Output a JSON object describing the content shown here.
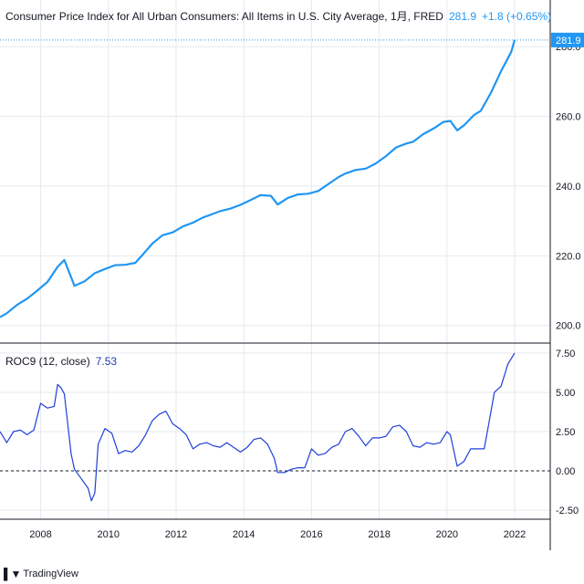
{
  "header": {
    "title": "Consumer Price Index for All Urban Consumers: All Items in U.S. City Average, 1月, FRED",
    "last_value": "281.9",
    "change": "+1.8 (+0.65%)"
  },
  "indicator": {
    "label": "ROC9 (12, close)",
    "value": "7.53"
  },
  "logo": {
    "text": "TradingView"
  },
  "colors": {
    "cpi_line": "#2196f3",
    "roc_line": "#1e3fd9",
    "grid": "#e6e9ee",
    "zero_line": "#131722"
  },
  "chart_data": [
    {
      "type": "line",
      "title": "Consumer Price Index for All Urban Consumers: All Items in U.S. City Average, 1月, FRED",
      "ylim": [
        196,
        285
      ],
      "yticks": [
        200,
        220,
        240,
        260,
        280
      ],
      "ytick_labels": [
        "200.0",
        "220.0",
        "240.0",
        "260.0",
        "280.0"
      ],
      "last_price_label": "281.9",
      "x": [
        2006.8,
        2007.0,
        2007.3,
        2007.6,
        2007.9,
        2008.2,
        2008.5,
        2008.7,
        2009.0,
        2009.3,
        2009.6,
        2009.9,
        2010.2,
        2010.5,
        2010.8,
        2011.0,
        2011.3,
        2011.6,
        2011.9,
        2012.2,
        2012.5,
        2012.8,
        2013.0,
        2013.3,
        2013.6,
        2013.9,
        2014.2,
        2014.5,
        2014.8,
        2015.0,
        2015.3,
        2015.6,
        2015.9,
        2016.2,
        2016.5,
        2016.8,
        2017.0,
        2017.3,
        2017.6,
        2017.9,
        2018.2,
        2018.5,
        2018.8,
        2019.0,
        2019.3,
        2019.6,
        2019.9,
        2020.1,
        2020.3,
        2020.5,
        2020.8,
        2021.0,
        2021.3,
        2021.6,
        2021.9,
        2022.0
      ],
      "values": [
        202.4,
        203.5,
        205.9,
        207.7,
        210.0,
        212.5,
        216.8,
        218.8,
        211.4,
        212.7,
        215.0,
        216.2,
        217.3,
        217.4,
        218.0,
        220.2,
        223.5,
        225.9,
        226.7,
        228.4,
        229.5,
        231.0,
        231.7,
        232.8,
        233.5,
        234.6,
        236.0,
        237.4,
        237.2,
        234.7,
        236.6,
        237.6,
        237.8,
        238.6,
        240.6,
        242.6,
        243.6,
        244.6,
        245.0,
        246.5,
        248.6,
        251.1,
        252.2,
        252.7,
        254.9,
        256.5,
        258.4,
        258.7,
        256.0,
        257.4,
        260.4,
        261.6,
        266.8,
        273.0,
        278.5,
        281.9
      ]
    },
    {
      "type": "line",
      "title": "ROC9 (12, close)",
      "ylim": [
        -2.9,
        7.9
      ],
      "yticks": [
        -2.5,
        0,
        2.5,
        5,
        7.5
      ],
      "ytick_labels": [
        "-2.50",
        "0.00",
        "2.50",
        "5.00",
        "7.50"
      ],
      "zero_line": true,
      "x": [
        2006.8,
        2007.0,
        2007.2,
        2007.4,
        2007.6,
        2007.8,
        2008.0,
        2008.2,
        2008.4,
        2008.5,
        2008.6,
        2008.7,
        2008.9,
        2009.0,
        2009.2,
        2009.4,
        2009.5,
        2009.6,
        2009.7,
        2009.9,
        2010.1,
        2010.3,
        2010.5,
        2010.7,
        2010.9,
        2011.1,
        2011.3,
        2011.5,
        2011.7,
        2011.9,
        2012.1,
        2012.3,
        2012.5,
        2012.7,
        2012.9,
        2013.1,
        2013.3,
        2013.5,
        2013.7,
        2013.9,
        2014.1,
        2014.3,
        2014.5,
        2014.7,
        2014.9,
        2015.0,
        2015.2,
        2015.4,
        2015.6,
        2015.8,
        2016.0,
        2016.2,
        2016.4,
        2016.6,
        2016.8,
        2017.0,
        2017.2,
        2017.4,
        2017.6,
        2017.8,
        2018.0,
        2018.2,
        2018.4,
        2018.6,
        2018.8,
        2019.0,
        2019.2,
        2019.4,
        2019.6,
        2019.8,
        2020.0,
        2020.1,
        2020.3,
        2020.5,
        2020.7,
        2020.9,
        2021.1,
        2021.2,
        2021.4,
        2021.6,
        2021.8,
        2022.0
      ],
      "values": [
        2.5,
        1.8,
        2.5,
        2.6,
        2.3,
        2.6,
        4.3,
        4.0,
        4.1,
        5.5,
        5.3,
        4.9,
        1.1,
        0.1,
        -0.5,
        -1.1,
        -1.9,
        -1.4,
        1.7,
        2.7,
        2.4,
        1.1,
        1.3,
        1.2,
        1.6,
        2.3,
        3.2,
        3.6,
        3.8,
        3.0,
        2.7,
        2.3,
        1.4,
        1.7,
        1.8,
        1.6,
        1.5,
        1.8,
        1.5,
        1.2,
        1.5,
        2.0,
        2.1,
        1.7,
        0.8,
        -0.1,
        -0.1,
        0.1,
        0.2,
        0.2,
        1.4,
        1.0,
        1.1,
        1.5,
        1.7,
        2.5,
        2.7,
        2.2,
        1.6,
        2.1,
        2.1,
        2.2,
        2.8,
        2.9,
        2.5,
        1.6,
        1.5,
        1.8,
        1.7,
        1.8,
        2.5,
        2.3,
        0.3,
        0.6,
        1.4,
        1.4,
        1.4,
        2.6,
        5.0,
        5.4,
        6.8,
        7.5
      ]
    }
  ],
  "x_axis": {
    "ticks": [
      2008,
      2010,
      2012,
      2014,
      2016,
      2018,
      2020,
      2022
    ],
    "tick_labels": [
      "2008",
      "2010",
      "2012",
      "2014",
      "2016",
      "2018",
      "2020",
      "2022"
    ]
  }
}
